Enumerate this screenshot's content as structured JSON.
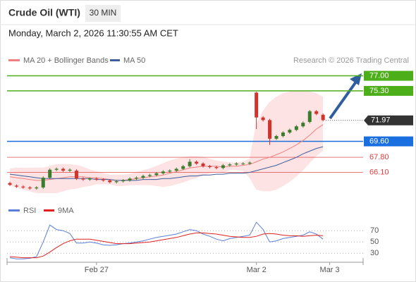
{
  "header": {
    "title": "Crude Oil (WTI)",
    "interval": "30 MIN",
    "timestamp": "Monday, March 2, 2026 11:30:55 AM CET",
    "credit": "Research © 2026 Trading Central"
  },
  "chart_data": [
    {
      "type": "candlestick",
      "categories": [
        null,
        null,
        null,
        null,
        null,
        null,
        null,
        null,
        null,
        null,
        null,
        null,
        null,
        "Feb 27",
        null,
        null,
        null,
        null,
        null,
        null,
        null,
        null,
        null,
        null,
        null,
        null,
        null,
        null,
        null,
        null,
        null,
        null,
        null,
        null,
        null,
        null,
        null,
        "Mar 2",
        null,
        null,
        null,
        null,
        null,
        null,
        null,
        null,
        null,
        null,
        "Mar 3"
      ],
      "open": [
        64.9,
        64.6,
        64.5,
        64.4,
        64.3,
        64.4,
        65.5,
        66.4,
        66.5,
        66.3,
        66.3,
        65.4,
        65.3,
        65.4,
        65.3,
        65.2,
        65.0,
        65.1,
        65.2,
        65.4,
        65.5,
        65.7,
        65.8,
        66.0,
        66.2,
        66.3,
        66.5,
        66.8,
        67.3,
        67.1,
        66.8,
        66.7,
        66.6,
        66.9,
        67.0,
        67.1,
        67.1,
        75.1,
        72.3,
        72.0,
        69.9,
        70.2,
        70.6,
        70.9,
        71.3,
        71.8,
        73.0,
        72.6,
        null
      ],
      "high": [
        65.05,
        64.75,
        64.65,
        64.55,
        64.55,
        65.65,
        66.55,
        66.65,
        66.65,
        66.55,
        66.45,
        65.55,
        65.55,
        65.55,
        65.45,
        65.35,
        65.25,
        65.35,
        65.55,
        65.65,
        65.85,
        65.95,
        66.15,
        66.35,
        66.45,
        66.65,
        66.95,
        67.6,
        67.45,
        67.25,
        66.95,
        66.85,
        67.05,
        67.15,
        67.25,
        67.25,
        67.35,
        75.2,
        72.45,
        72.15,
        70.35,
        70.75,
        71.05,
        71.45,
        71.85,
        73.15,
        73.15,
        72.75,
        null
      ],
      "low": [
        64.55,
        64.35,
        64.25,
        64.15,
        64.15,
        64.25,
        65.35,
        66.25,
        66.15,
        66.15,
        65.25,
        65.15,
        65.15,
        65.15,
        65.05,
        64.85,
        64.85,
        64.95,
        65.05,
        65.25,
        65.35,
        65.55,
        65.65,
        65.85,
        66.05,
        66.15,
        66.35,
        66.65,
        66.95,
        66.65,
        66.55,
        66.45,
        66.45,
        66.75,
        66.85,
        66.95,
        66.95,
        71.0,
        71.85,
        69.2,
        69.75,
        70.05,
        70.45,
        70.75,
        71.15,
        71.65,
        72.55,
        71.85,
        null
      ],
      "close": [
        64.7,
        64.5,
        64.4,
        64.3,
        64.4,
        65.5,
        66.4,
        66.5,
        66.3,
        66.4,
        65.4,
        65.3,
        65.4,
        65.3,
        65.2,
        65.0,
        65.1,
        65.2,
        65.4,
        65.5,
        65.7,
        65.8,
        66.0,
        66.2,
        66.3,
        66.5,
        66.8,
        67.3,
        67.1,
        66.8,
        66.7,
        66.6,
        66.9,
        67.0,
        67.1,
        67.1,
        67.2,
        72.3,
        72.0,
        69.9,
        70.2,
        70.6,
        70.9,
        71.3,
        71.7,
        73.0,
        72.7,
        72.0,
        null
      ],
      "up_color": "#3a7d2c",
      "down_color": "#d0342c",
      "series": [
        {
          "name": "MA 20 + Bollinger Bands",
          "color": "#f08080",
          "band_color": "#fde3e3",
          "values": [
            65.6,
            65.5,
            65.4,
            65.3,
            65.2,
            65.2,
            65.3,
            65.4,
            65.5,
            65.6,
            65.6,
            65.6,
            65.5,
            65.5,
            65.4,
            65.3,
            65.2,
            65.2,
            65.3,
            65.4,
            65.5,
            65.6,
            65.7,
            65.8,
            66.0,
            66.2,
            66.4,
            66.6,
            66.7,
            66.8,
            66.8,
            66.8,
            66.7,
            66.8,
            66.8,
            66.9,
            67.0,
            67.3,
            67.6,
            67.8,
            68.1,
            68.4,
            68.8,
            69.2,
            69.7,
            70.3,
            71.0,
            71.5,
            null
          ],
          "upper": [
            66.5,
            66.6,
            66.6,
            66.6,
            66.6,
            66.6,
            66.8,
            67.0,
            67.0,
            67.0,
            66.9,
            66.7,
            66.4,
            66.2,
            66.0,
            65.8,
            65.8,
            65.8,
            65.9,
            66.1,
            66.3,
            66.5,
            66.8,
            67.1,
            67.4,
            67.6,
            67.8,
            67.9,
            67.9,
            67.8,
            67.6,
            67.4,
            67.3,
            67.2,
            67.2,
            67.3,
            67.6,
            71.5,
            73.0,
            74.0,
            74.6,
            75.0,
            75.2,
            75.3,
            75.3,
            75.2,
            75.0,
            74.6,
            null
          ],
          "lower": [
            64.7,
            64.4,
            64.2,
            64.0,
            63.8,
            63.8,
            63.8,
            63.8,
            64.0,
            64.2,
            64.3,
            64.5,
            64.6,
            64.8,
            64.8,
            64.8,
            64.6,
            64.6,
            64.7,
            64.7,
            64.7,
            64.7,
            64.6,
            64.5,
            64.6,
            64.8,
            65.0,
            65.3,
            65.5,
            65.8,
            66.0,
            66.2,
            66.1,
            66.4,
            66.4,
            66.3,
            65.5,
            64.2,
            64.0,
            64.0,
            64.2,
            64.6,
            65.1,
            65.7,
            66.4,
            67.2,
            68.0,
            68.6,
            null
          ]
        },
        {
          "name": "MA 50",
          "color": "#3f5e9c",
          "values": [
            65.9,
            65.8,
            65.7,
            65.6,
            65.5,
            65.4,
            65.4,
            65.4,
            65.4,
            65.4,
            65.4,
            65.4,
            65.4,
            65.3,
            65.3,
            65.3,
            65.2,
            65.2,
            65.2,
            65.2,
            65.3,
            65.3,
            65.3,
            65.4,
            65.4,
            65.5,
            65.6,
            65.7,
            65.7,
            65.8,
            65.8,
            65.9,
            65.9,
            66.0,
            66.0,
            66.0,
            66.1,
            66.3,
            66.5,
            66.7,
            66.9,
            67.2,
            67.5,
            67.8,
            68.2,
            68.5,
            68.8,
            69.0,
            null
          ]
        }
      ],
      "levels": [
        {
          "value": 77,
          "label": "77.00",
          "color": "#4caf1a",
          "boxed": true
        },
        {
          "value": 75.3,
          "label": "75.30",
          "color": "#4caf1a",
          "boxed": true
        },
        {
          "value": 69.6,
          "label": "69.60",
          "color": "#1a6fe0",
          "boxed": true
        },
        {
          "value": 67.8,
          "label": "67.80",
          "color": "#e04040",
          "boxed": false
        },
        {
          "value": 66.1,
          "label": "66.10",
          "color": "#e04040",
          "boxed": false
        }
      ],
      "last_price": 71.97,
      "last_price_color": "#333333",
      "ylim": [
        63.2,
        77.6
      ]
    },
    {
      "type": "line",
      "series": [
        {
          "name": "RSI",
          "color": "#5b7fd6",
          "values": [
            22,
            20,
            20,
            21,
            24,
            50,
            80,
            72,
            70,
            65,
            48,
            48,
            50,
            48,
            45,
            44,
            45,
            47,
            48,
            50,
            52,
            55,
            58,
            60,
            62,
            64,
            68,
            72,
            70,
            64,
            60,
            55,
            52,
            56,
            58,
            60,
            62,
            85,
            72,
            50,
            52,
            56,
            58,
            60,
            62,
            68,
            64,
            55,
            null
          ]
        },
        {
          "name": "9MA",
          "color": "#e02020",
          "values": [
            24,
            23,
            22,
            22,
            22,
            25,
            32,
            40,
            47,
            52,
            55,
            55,
            55,
            53,
            51,
            49,
            47,
            47,
            47,
            48,
            49,
            50,
            52,
            54,
            56,
            58,
            61,
            64,
            66,
            66,
            65,
            64,
            62,
            60,
            59,
            58,
            58,
            60,
            64,
            65,
            64,
            62,
            61,
            61,
            60,
            61,
            62,
            61,
            null
          ]
        }
      ],
      "ylim": [
        14,
        94
      ],
      "yticks": [
        70,
        50,
        30
      ],
      "grid": true
    }
  ]
}
